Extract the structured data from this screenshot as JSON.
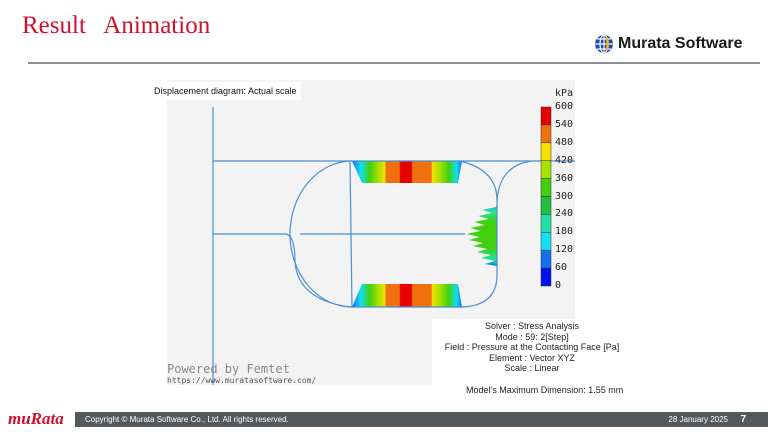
{
  "header": {
    "title": "Result   Animation",
    "brand": "Murata Software",
    "brand_icon": "globe-icon"
  },
  "viewer": {
    "displacement_label": "Displacement diagram: Actual scale",
    "colorbar": {
      "unit": "kPa",
      "labels": [
        "600",
        "540",
        "480",
        "420",
        "360",
        "300",
        "240",
        "180",
        "120",
        "60",
        "0"
      ],
      "colors": [
        "#e60000",
        "#f07010",
        "#f5e000",
        "#a8e000",
        "#40d010",
        "#20c040",
        "#20e0a8",
        "#10e0f0",
        "#1070f0",
        "#0010f0"
      ]
    },
    "info": {
      "solver": "Solver : Stress Analysis",
      "mode": "Mode : 59:  2[Step]",
      "field": "Field : Pressure at the Contacting Face [Pa]",
      "element": "Element : Vector XYZ",
      "scale": "Scale : Linear"
    },
    "max_dimension": "Model's Maximum Dimension: 1.55 mm",
    "powered": "Powered by Femtet",
    "url": "https://www.muratasoftware.com/"
  },
  "footer": {
    "logo": "muRata",
    "copyright": "Copyright © Murata Software Co., Ltd. All rights reserved.",
    "date": "28 January 2025",
    "page": "7"
  }
}
